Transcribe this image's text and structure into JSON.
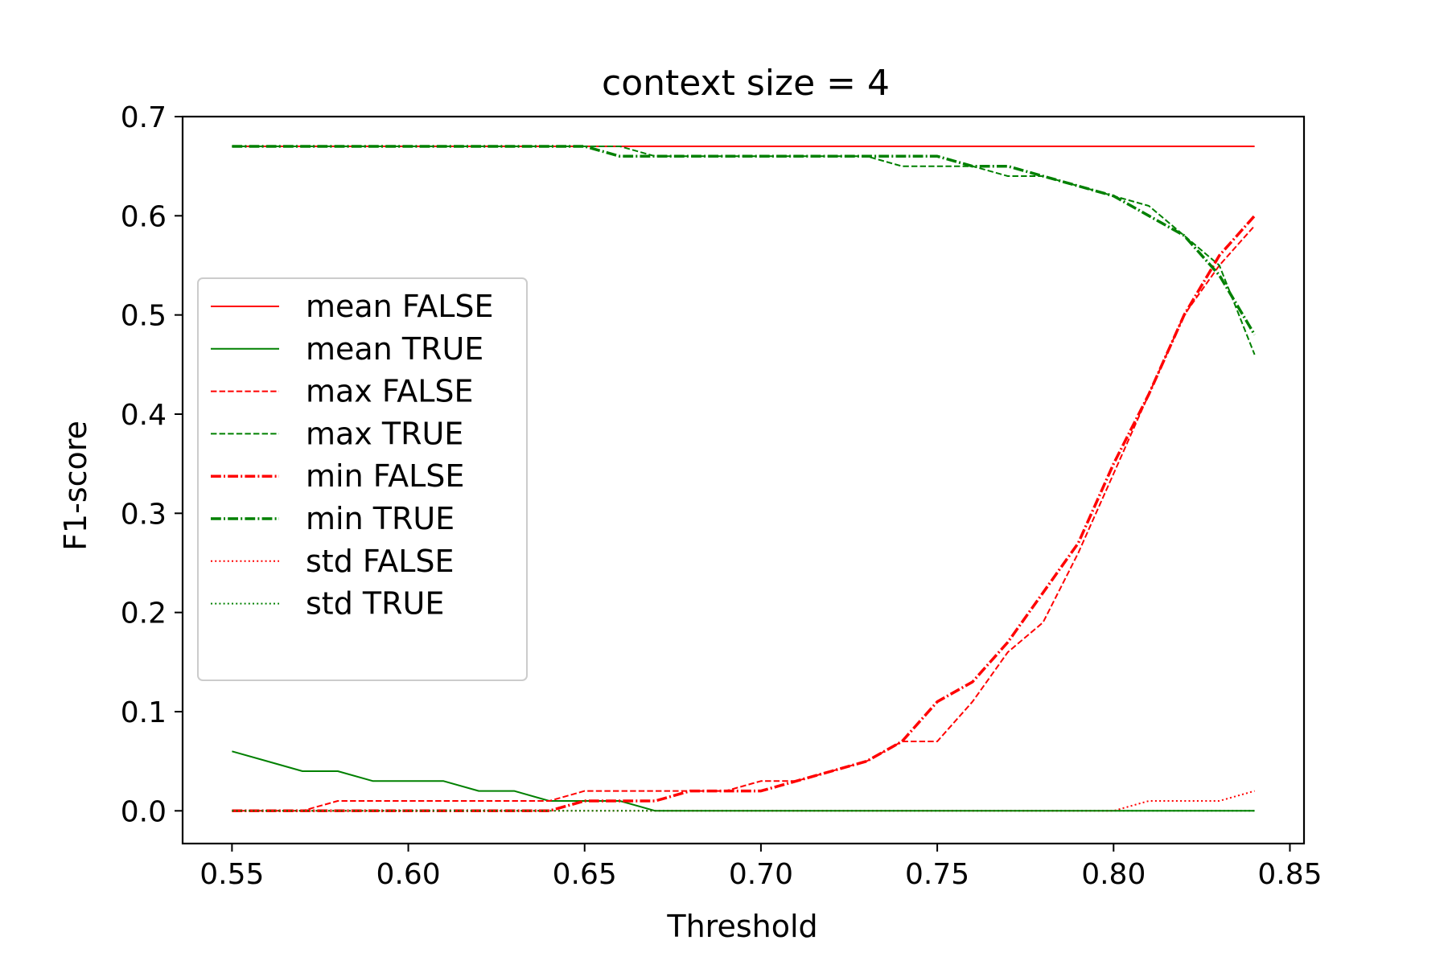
{
  "chart_data": {
    "type": "line",
    "title": "context size = 4",
    "xlabel": "Threshold",
    "ylabel": "F1-score",
    "xlim": [
      0.536,
      0.854
    ],
    "ylim": [
      -0.033,
      0.7
    ],
    "xticks": [
      0.55,
      0.6,
      0.65,
      0.7,
      0.75,
      0.8,
      0.85
    ],
    "xtick_labels": [
      "0.55",
      "0.60",
      "0.65",
      "0.70",
      "0.75",
      "0.80",
      "0.85"
    ],
    "yticks": [
      0.0,
      0.1,
      0.2,
      0.3,
      0.4,
      0.5,
      0.6,
      0.7
    ],
    "ytick_labels": [
      "0.0",
      "0.1",
      "0.2",
      "0.3",
      "0.4",
      "0.5",
      "0.6",
      "0.7"
    ],
    "legend_position": "center-left",
    "x": [
      0.55,
      0.56,
      0.57,
      0.58,
      0.59,
      0.6,
      0.61,
      0.62,
      0.63,
      0.64,
      0.65,
      0.66,
      0.67,
      0.68,
      0.69,
      0.7,
      0.71,
      0.72,
      0.73,
      0.74,
      0.75,
      0.76,
      0.77,
      0.78,
      0.79,
      0.8,
      0.81,
      0.82,
      0.83,
      0.84
    ],
    "series": [
      {
        "name": "mean FALSE",
        "color": "#ff0000",
        "style": "solid",
        "width": 2,
        "values": [
          0.67,
          0.67,
          0.67,
          0.67,
          0.67,
          0.67,
          0.67,
          0.67,
          0.67,
          0.67,
          0.67,
          0.67,
          0.67,
          0.67,
          0.67,
          0.67,
          0.67,
          0.67,
          0.67,
          0.67,
          0.67,
          0.67,
          0.67,
          0.67,
          0.67,
          0.67,
          0.67,
          0.67,
          0.67,
          0.67
        ]
      },
      {
        "name": "mean TRUE",
        "color": "#008000",
        "style": "solid",
        "width": 2,
        "values": [
          0.06,
          0.05,
          0.04,
          0.04,
          0.03,
          0.03,
          0.03,
          0.02,
          0.02,
          0.01,
          0.01,
          0.01,
          0.0,
          0.0,
          0.0,
          0.0,
          0.0,
          0.0,
          0.0,
          0.0,
          0.0,
          0.0,
          0.0,
          0.0,
          0.0,
          0.0,
          0.0,
          0.0,
          0.0,
          0.0
        ]
      },
      {
        "name": "max FALSE",
        "color": "#ff0000",
        "style": "dashed",
        "width": 2,
        "values": [
          0.0,
          0.0,
          0.0,
          0.01,
          0.01,
          0.01,
          0.01,
          0.01,
          0.01,
          0.01,
          0.02,
          0.02,
          0.02,
          0.02,
          0.02,
          0.03,
          0.03,
          0.04,
          0.05,
          0.07,
          0.07,
          0.11,
          0.16,
          0.19,
          0.26,
          0.34,
          0.42,
          0.5,
          0.55,
          0.59
        ]
      },
      {
        "name": "max TRUE",
        "color": "#008000",
        "style": "dashed",
        "width": 2,
        "values": [
          0.67,
          0.67,
          0.67,
          0.67,
          0.67,
          0.67,
          0.67,
          0.67,
          0.67,
          0.67,
          0.67,
          0.67,
          0.66,
          0.66,
          0.66,
          0.66,
          0.66,
          0.66,
          0.66,
          0.65,
          0.65,
          0.65,
          0.64,
          0.64,
          0.63,
          0.62,
          0.61,
          0.58,
          0.55,
          0.46
        ]
      },
      {
        "name": "min FALSE",
        "color": "#ff0000",
        "style": "dashdot",
        "width": 3.5,
        "values": [
          0.0,
          0.0,
          0.0,
          0.0,
          0.0,
          0.0,
          0.0,
          0.0,
          0.0,
          0.0,
          0.01,
          0.01,
          0.01,
          0.02,
          0.02,
          0.02,
          0.03,
          0.04,
          0.05,
          0.07,
          0.11,
          0.13,
          0.17,
          0.22,
          0.27,
          0.35,
          0.42,
          0.5,
          0.56,
          0.6
        ]
      },
      {
        "name": "min TRUE",
        "color": "#008000",
        "style": "dashdot",
        "width": 3.5,
        "values": [
          0.67,
          0.67,
          0.67,
          0.67,
          0.67,
          0.67,
          0.67,
          0.67,
          0.67,
          0.67,
          0.67,
          0.66,
          0.66,
          0.66,
          0.66,
          0.66,
          0.66,
          0.66,
          0.66,
          0.66,
          0.66,
          0.65,
          0.65,
          0.64,
          0.63,
          0.62,
          0.6,
          0.58,
          0.54,
          0.48
        ]
      },
      {
        "name": "std FALSE",
        "color": "#ff0000",
        "style": "dotted",
        "width": 2,
        "values": [
          0.0,
          0.0,
          0.0,
          0.0,
          0.0,
          0.0,
          0.0,
          0.0,
          0.0,
          0.0,
          0.0,
          0.0,
          0.0,
          0.0,
          0.0,
          0.0,
          0.0,
          0.0,
          0.0,
          0.0,
          0.0,
          0.0,
          0.0,
          0.0,
          0.0,
          0.0,
          0.01,
          0.01,
          0.01,
          0.02
        ]
      },
      {
        "name": "std TRUE",
        "color": "#008000",
        "style": "dotted",
        "width": 2,
        "values": [
          0.0,
          0.0,
          0.0,
          0.0,
          0.0,
          0.0,
          0.0,
          0.0,
          0.0,
          0.0,
          0.0,
          0.0,
          0.0,
          0.0,
          0.0,
          0.0,
          0.0,
          0.0,
          0.0,
          0.0,
          0.0,
          0.0,
          0.0,
          0.0,
          0.0,
          0.0,
          0.0,
          0.0,
          0.0,
          0.0
        ]
      }
    ]
  }
}
